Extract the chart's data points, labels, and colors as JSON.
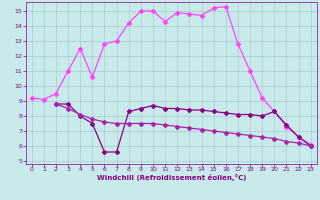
{
  "xlabel": "Windchill (Refroidissement éolien,°C)",
  "bg_color": "#c8eaea",
  "grid_color": "#a8cccc",
  "ylim": [
    4.8,
    15.6
  ],
  "xlim": [
    -0.5,
    23.5
  ],
  "yticks": [
    5,
    6,
    7,
    8,
    9,
    10,
    11,
    12,
    13,
    14,
    15
  ],
  "xticks": [
    0,
    1,
    2,
    3,
    4,
    5,
    6,
    7,
    8,
    9,
    10,
    11,
    12,
    13,
    14,
    15,
    16,
    17,
    18,
    19,
    20,
    21,
    22,
    23
  ],
  "line1_x": [
    0,
    1,
    2,
    3,
    4,
    5,
    6,
    7,
    8,
    9,
    10,
    11,
    12,
    13,
    14,
    15,
    16,
    17,
    18,
    19,
    20,
    21,
    22,
    23
  ],
  "line1_y": [
    9.2,
    9.1,
    9.5,
    11.0,
    12.5,
    10.6,
    12.8,
    13.0,
    14.2,
    15.0,
    15.0,
    14.3,
    14.9,
    14.8,
    14.7,
    15.2,
    15.3,
    12.8,
    11.0,
    9.2,
    8.3,
    7.3,
    6.6,
    6.1
  ],
  "line2_x": [
    2,
    3,
    4,
    5,
    6,
    7,
    8,
    9,
    10,
    11,
    12,
    13,
    14,
    15,
    16,
    17,
    18,
    19,
    20,
    21,
    22,
    23
  ],
  "line2_y": [
    8.8,
    8.8,
    8.0,
    7.5,
    5.6,
    5.6,
    8.3,
    8.5,
    8.7,
    8.5,
    8.5,
    8.4,
    8.4,
    8.3,
    8.2,
    8.1,
    8.1,
    8.0,
    8.3,
    7.4,
    6.6,
    6.0
  ],
  "line3_x": [
    2,
    3,
    4,
    5,
    6,
    7,
    8,
    9,
    10,
    11,
    12,
    13,
    14,
    15,
    16,
    17,
    18,
    19,
    20,
    21,
    22,
    23
  ],
  "line3_y": [
    8.8,
    8.5,
    8.1,
    7.8,
    7.6,
    7.5,
    7.5,
    7.5,
    7.5,
    7.4,
    7.3,
    7.2,
    7.1,
    7.0,
    6.9,
    6.8,
    6.7,
    6.6,
    6.5,
    6.3,
    6.2,
    6.0
  ],
  "color1": "#ff44ff",
  "color2": "#880088",
  "color3": "#aa22aa",
  "spine_color": "#880088",
  "tick_color": "#880088",
  "label_color": "#880088",
  "markersize": 2.0,
  "linewidth": 0.9,
  "tick_fontsize": 4.5,
  "xlabel_fontsize": 5.0
}
